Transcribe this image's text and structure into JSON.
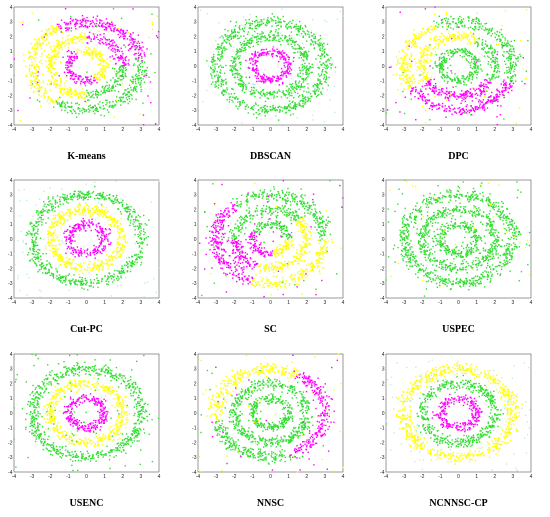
{
  "colors": {
    "magenta": "#ff00ff",
    "yellow": "#ffff00",
    "green": "#33dd33",
    "cyan": "#bbeeee",
    "axis": "#555555"
  },
  "chart_data": [
    {
      "type": "scatter",
      "title": "K-means",
      "xlim": [
        -4,
        4
      ],
      "ylim": [
        -4,
        4
      ],
      "xticks": [
        "-4",
        "-3",
        "-2",
        "-1",
        "0",
        "1",
        "2",
        "3",
        "4"
      ],
      "yticks": [
        "4",
        "3",
        "2",
        "1",
        "0",
        "-1",
        "-2",
        "-3",
        "-4"
      ],
      "pattern": {
        "inner": [
          [
            120,
            300,
            "magenta"
          ],
          [
            300,
            480,
            "yellow"
          ]
        ],
        "middle": [
          [
            0,
            90,
            "magenta"
          ],
          [
            90,
            270,
            "yellow"
          ],
          [
            270,
            360,
            "green"
          ]
        ],
        "outer": [
          [
            10,
            120,
            "magenta"
          ],
          [
            120,
            235,
            "yellow"
          ],
          [
            235,
            360,
            "green"
          ]
        ],
        "noise": [
          [
            "magenta",
            0.35
          ],
          [
            "yellow",
            0.35
          ],
          [
            "green",
            0.3
          ]
        ]
      }
    },
    {
      "type": "scatter",
      "title": "DBSCAN",
      "xlim": [
        -4,
        4
      ],
      "ylim": [
        -4,
        4
      ],
      "xticks": [
        "-4",
        "-3",
        "-2",
        "-1",
        "0",
        "1",
        "2",
        "3",
        "4"
      ],
      "yticks": [
        "4",
        "3",
        "2",
        "1",
        "0",
        "-1",
        "-2",
        "-3",
        "-4"
      ],
      "pattern": {
        "inner": [
          [
            0,
            360,
            "magenta"
          ]
        ],
        "middle": [
          [
            0,
            360,
            "green"
          ]
        ],
        "outer": [
          [
            0,
            360,
            "green"
          ]
        ],
        "noise": [
          [
            "cyan",
            1.0
          ]
        ]
      }
    },
    {
      "type": "scatter",
      "title": "DPC",
      "xlim": [
        -4,
        4
      ],
      "ylim": [
        -4,
        4
      ],
      "xticks": [
        "-4",
        "-3",
        "-2",
        "-1",
        "0",
        "1",
        "2",
        "3",
        "4"
      ],
      "yticks": [
        "4",
        "3",
        "2",
        "1",
        "0",
        "-1",
        "-2",
        "-3",
        "-4"
      ],
      "pattern": {
        "inner": [
          [
            0,
            360,
            "green"
          ]
        ],
        "middle": [
          [
            60,
            210,
            "yellow"
          ],
          [
            210,
            330,
            "magenta"
          ],
          [
            330,
            420,
            "green"
          ]
        ],
        "outer": [
          [
            0,
            115,
            "green"
          ],
          [
            115,
            210,
            "yellow"
          ],
          [
            210,
            340,
            "magenta"
          ],
          [
            340,
            360,
            "green"
          ]
        ],
        "noise": [
          [
            "yellow",
            0.4
          ],
          [
            "green",
            0.3
          ],
          [
            "magenta",
            0.3
          ]
        ]
      }
    },
    {
      "type": "scatter",
      "title": "Cut-PC",
      "xlim": [
        -4,
        4
      ],
      "ylim": [
        -4,
        4
      ],
      "xticks": [
        "-4",
        "-3",
        "-2",
        "-1",
        "0",
        "1",
        "2",
        "3",
        "4"
      ],
      "yticks": [
        "4",
        "3",
        "2",
        "1",
        "0",
        "-1",
        "-2",
        "-3",
        "-4"
      ],
      "pattern": {
        "inner": [
          [
            0,
            360,
            "magenta"
          ]
        ],
        "middle": [
          [
            0,
            360,
            "yellow"
          ]
        ],
        "outer": [
          [
            0,
            360,
            "green"
          ]
        ],
        "noise": [
          [
            "cyan",
            1.0
          ]
        ]
      }
    },
    {
      "type": "scatter",
      "title": "SC",
      "xlim": [
        -4,
        4
      ],
      "ylim": [
        -4,
        4
      ],
      "xticks": [
        "-4",
        "-3",
        "-2",
        "-1",
        "0",
        "1",
        "2",
        "3",
        "4"
      ],
      "yticks": [
        "4",
        "3",
        "2",
        "1",
        "0",
        "-1",
        "-2",
        "-3",
        "-4"
      ],
      "pattern": {
        "inner": [
          [
            0,
            150,
            "green"
          ],
          [
            150,
            280,
            "magenta"
          ],
          [
            280,
            360,
            "yellow"
          ]
        ],
        "middle": [
          [
            40,
            180,
            "green"
          ],
          [
            180,
            250,
            "magenta"
          ],
          [
            250,
            400,
            "yellow"
          ]
        ],
        "outer": [
          [
            0,
            80,
            "green"
          ],
          [
            80,
            130,
            "green"
          ],
          [
            130,
            250,
            "magenta"
          ],
          [
            250,
            360,
            "yellow"
          ]
        ],
        "noise": [
          [
            "magenta",
            0.4
          ],
          [
            "green",
            0.35
          ],
          [
            "yellow",
            0.25
          ]
        ]
      }
    },
    {
      "type": "scatter",
      "title": "USPEC",
      "xlim": [
        -4,
        4
      ],
      "ylim": [
        -4,
        4
      ],
      "xticks": [
        "-4",
        "-3",
        "-2",
        "-1",
        "0",
        "1",
        "2",
        "3",
        "4"
      ],
      "yticks": [
        "4",
        "3",
        "2",
        "1",
        "0",
        "-1",
        "-2",
        "-3",
        "-4"
      ],
      "pattern": {
        "inner": [
          [
            0,
            360,
            "green"
          ]
        ],
        "middle": [
          [
            0,
            360,
            "green"
          ]
        ],
        "outer": [
          [
            0,
            360,
            "green"
          ]
        ],
        "noise": [
          [
            "green",
            0.7
          ],
          [
            "yellow",
            0.3
          ]
        ]
      }
    },
    {
      "type": "scatter",
      "title": "USENC",
      "xlim": [
        -4,
        4
      ],
      "ylim": [
        -4,
        4
      ],
      "xticks": [
        "-4",
        "-3",
        "-2",
        "-1",
        "0",
        "1",
        "2",
        "3",
        "4"
      ],
      "yticks": [
        "4",
        "3",
        "2",
        "1",
        "0",
        "-1",
        "-2",
        "-3",
        "-4"
      ],
      "pattern": {
        "inner": [
          [
            0,
            360,
            "magenta"
          ]
        ],
        "middle": [
          [
            0,
            360,
            "yellow"
          ]
        ],
        "outer": [
          [
            0,
            360,
            "green"
          ]
        ],
        "noise": [
          [
            "green",
            1.0
          ]
        ]
      }
    },
    {
      "type": "scatter",
      "title": "NNSC",
      "xlim": [
        -4,
        4
      ],
      "ylim": [
        -4,
        4
      ],
      "xticks": [
        "-4",
        "-3",
        "-2",
        "-1",
        "0",
        "1",
        "2",
        "3",
        "4"
      ],
      "yticks": [
        "4",
        "3",
        "2",
        "1",
        "0",
        "-1",
        "-2",
        "-3",
        "-4"
      ],
      "pattern": {
        "inner": [
          [
            0,
            360,
            "green"
          ]
        ],
        "middle": [
          [
            0,
            360,
            "green"
          ]
        ],
        "outer": [
          [
            0,
            60,
            "magenta"
          ],
          [
            60,
            190,
            "yellow"
          ],
          [
            190,
            290,
            "green"
          ],
          [
            290,
            360,
            "magenta"
          ]
        ],
        "noise": [
          [
            "magenta",
            0.4
          ],
          [
            "yellow",
            0.35
          ],
          [
            "green",
            0.25
          ]
        ]
      }
    },
    {
      "type": "scatter",
      "title": "NCNNSC-CP",
      "xlim": [
        -4,
        4
      ],
      "ylim": [
        -4,
        4
      ],
      "xticks": [
        "-4",
        "-3",
        "-2",
        "-1",
        "0",
        "1",
        "2",
        "3",
        "4"
      ],
      "yticks": [
        "4",
        "3",
        "2",
        "1",
        "0",
        "-1",
        "-2",
        "-3",
        "-4"
      ],
      "pattern": {
        "inner": [
          [
            0,
            360,
            "magenta"
          ]
        ],
        "middle": [
          [
            0,
            360,
            "green"
          ]
        ],
        "outer": [
          [
            0,
            360,
            "yellow"
          ]
        ],
        "noise": [
          [
            "cyan",
            1.0
          ]
        ]
      }
    }
  ]
}
